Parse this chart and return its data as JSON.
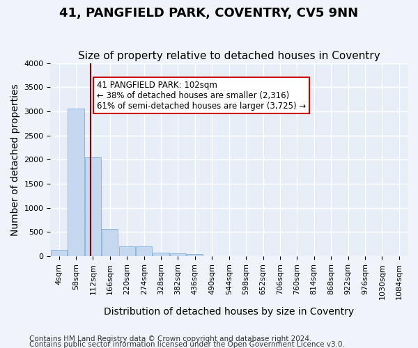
{
  "title1": "41, PANGFIELD PARK, COVENTRY, CV5 9NN",
  "title2": "Size of property relative to detached houses in Coventry",
  "xlabel": "Distribution of detached houses by size in Coventry",
  "ylabel": "Number of detached properties",
  "bin_labels": [
    "4sqm",
    "58sqm",
    "112sqm",
    "166sqm",
    "220sqm",
    "274sqm",
    "328sqm",
    "382sqm",
    "436sqm",
    "490sqm",
    "544sqm",
    "598sqm",
    "652sqm",
    "706sqm",
    "760sqm",
    "814sqm",
    "868sqm",
    "922sqm",
    "976sqm",
    "1030sqm",
    "1084sqm"
  ],
  "bar_values": [
    130,
    3050,
    2050,
    560,
    200,
    200,
    80,
    60,
    50,
    0,
    0,
    0,
    0,
    0,
    0,
    0,
    0,
    0,
    0,
    0,
    0
  ],
  "bar_color": "#c5d8f0",
  "bar_edge_color": "#6fa8d6",
  "property_line_x": 1.85,
  "property_line_color": "#8b0000",
  "annotation_text": "41 PANGFIELD PARK: 102sqm\n← 38% of detached houses are smaller (2,316)\n61% of semi-detached houses are larger (3,725) →",
  "annotation_box_color": "#ffffff",
  "annotation_box_edge": "#cc0000",
  "ylim": [
    0,
    4000
  ],
  "yticks": [
    0,
    500,
    1000,
    1500,
    2000,
    2500,
    3000,
    3500,
    4000
  ],
  "footer1": "Contains HM Land Registry data © Crown copyright and database right 2024.",
  "footer2": "Contains public sector information licensed under the Open Government Licence v3.0.",
  "background_color": "#f0f4fa",
  "plot_background": "#e8eef8",
  "grid_color": "#ffffff",
  "title1_fontsize": 13,
  "title2_fontsize": 11,
  "axis_label_fontsize": 10,
  "tick_fontsize": 8,
  "annotation_fontsize": 8.5,
  "footer_fontsize": 7.5
}
